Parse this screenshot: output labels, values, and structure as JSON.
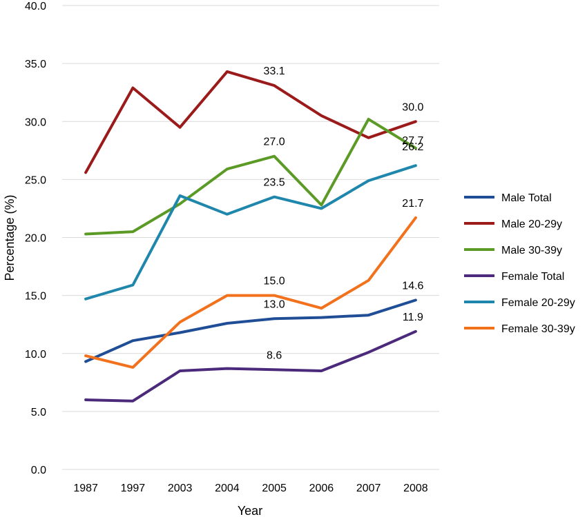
{
  "chart_data": {
    "type": "line",
    "title": "",
    "xlabel": "Year",
    "ylabel": "Percentage (%)",
    "ylim": [
      0,
      40
    ],
    "y_ticks": [
      "0.0",
      "5.0",
      "10.0",
      "15.0",
      "20.0",
      "25.0",
      "30.0",
      "35.0",
      "40.0"
    ],
    "grid": true,
    "legend_position": "right",
    "categories": [
      "1987",
      "1997",
      "2003",
      "2004",
      "2005",
      "2006",
      "2007",
      "2008"
    ],
    "series": [
      {
        "name": "Male Total",
        "color": "#1f4e96",
        "values": [
          9.3,
          11.1,
          11.8,
          12.6,
          13.0,
          13.1,
          13.3,
          14.6
        ]
      },
      {
        "name": "Male 20-29y",
        "color": "#9b1b1b",
        "values": [
          25.6,
          32.9,
          29.5,
          34.3,
          33.1,
          30.5,
          28.6,
          30.0
        ]
      },
      {
        "name": "Male 30-39y",
        "color": "#5b9a24",
        "values": [
          20.3,
          20.5,
          22.9,
          25.9,
          27.0,
          22.8,
          30.2,
          27.7
        ]
      },
      {
        "name": "Female Total",
        "color": "#4b2a7b",
        "values": [
          6.0,
          5.9,
          8.5,
          8.7,
          8.6,
          8.5,
          10.1,
          11.9
        ]
      },
      {
        "name": "Female 20-29y",
        "color": "#1f86ac",
        "values": [
          14.7,
          15.9,
          23.6,
          22.0,
          23.5,
          22.5,
          24.9,
          26.2
        ]
      },
      {
        "name": "Female 30-39y",
        "color": "#f2711c",
        "values": [
          9.8,
          8.8,
          12.7,
          15.0,
          15.0,
          13.9,
          16.3,
          21.7
        ]
      }
    ],
    "data_labels": [
      {
        "series": "Male 20-29y",
        "category": "2005",
        "text": "33.1"
      },
      {
        "series": "Male 20-29y",
        "category": "2008",
        "text": "30.0"
      },
      {
        "series": "Male 30-39y",
        "category": "2005",
        "text": "27.0"
      },
      {
        "series": "Male 30-39y",
        "category": "2008",
        "text": "27.7"
      },
      {
        "series": "Female 20-29y",
        "category": "2005",
        "text": "23.5"
      },
      {
        "series": "Female 20-29y",
        "category": "2008",
        "text": "26.2"
      },
      {
        "series": "Female 30-39y",
        "category": "2005",
        "text": "15.0"
      },
      {
        "series": "Female 30-39y",
        "category": "2008",
        "text": "21.7"
      },
      {
        "series": "Male Total",
        "category": "2005",
        "text": "13.0"
      },
      {
        "series": "Male Total",
        "category": "2008",
        "text": "14.6"
      },
      {
        "series": "Female Total",
        "category": "2005",
        "text": "8.6"
      },
      {
        "series": "Female Total",
        "category": "2008",
        "text": "11.9"
      }
    ]
  }
}
